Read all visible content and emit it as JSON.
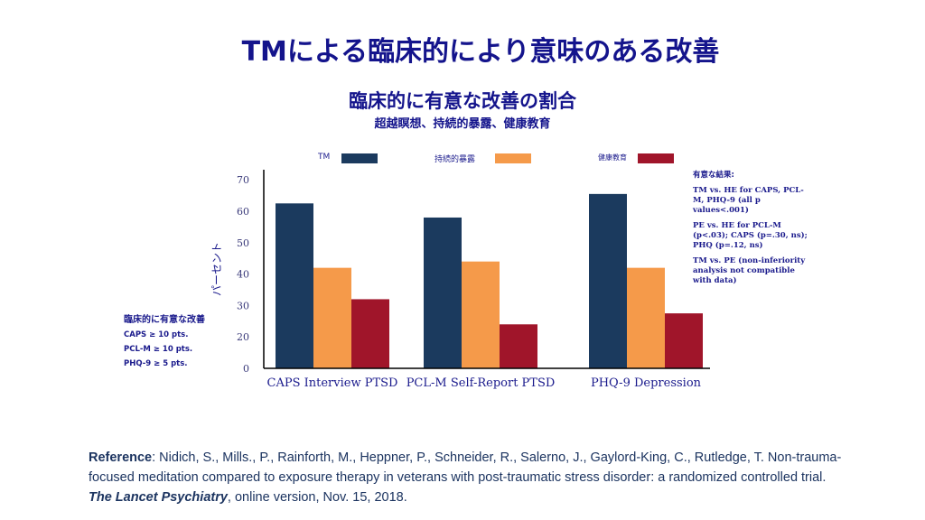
{
  "title": "TMによる臨床的により意味のある改善",
  "chart_data": {
    "type": "bar",
    "title": "臨床的に有意な改善の割合",
    "subtitle": "超越瞑想、持続的暴露、健康教育",
    "ylabel": "パーセント",
    "xlabel": "",
    "categories": [
      "CAPS Interview PTSD",
      "PCL-M Self-Report PTSD",
      "PHQ-9 Depression"
    ],
    "yticks": [
      0,
      20,
      30,
      40,
      50,
      60,
      70
    ],
    "ylim": [
      0,
      70
    ],
    "grid": false,
    "legend_position": "top",
    "series": [
      {
        "name": "TM",
        "color": "#1b3a5e",
        "values": [
          62.5,
          58,
          65.5
        ]
      },
      {
        "name": "持続的暴露",
        "color": "#f59a4a",
        "values": [
          42,
          44,
          42
        ]
      },
      {
        "name": "健康教育",
        "color": "#a0152a",
        "values": [
          32,
          24,
          27.5
        ]
      }
    ]
  },
  "notes": {
    "heading": "有意な結果:",
    "items": [
      "TM vs. HE for CAPS, PCL-M, PHQ-9 (all p values<.001)",
      "PE vs. HE for PCL-M (p<.03); CAPS (p=.30, ns);  PHQ (p=.12, ns)",
      "TM vs. PE (non-inferiority analysis not compatible with data)"
    ]
  },
  "criteria": {
    "heading": "臨床的に有意な改善",
    "items": [
      "CAPS ≥ 10 pts.",
      "PCL-M ≥ 10 pts.",
      "PHQ-9 ≥ 5 pts."
    ]
  },
  "reference": {
    "label": "Reference",
    "text1": ": Nidich, S., Mills., P., Rainforth, M., Heppner, P., Schneider, R., Salerno, J., Gaylord-King, C., Rutledge, T.  Non-trauma-focused meditation compared to exposure therapy in veterans with post-traumatic stress disorder: a randomized controlled trial. ",
    "journal": "The Lancet Psychiatry",
    "text2": ", online version, Nov. 15, 2018."
  }
}
